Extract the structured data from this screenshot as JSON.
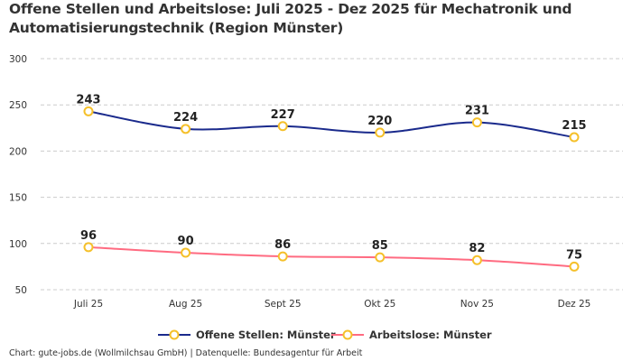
{
  "chart_data": {
    "type": "line",
    "title": "Offene Stellen und Arbeitslose: Juli 2025 - Dez 2025 für Mechatronik und Automatisierungstechnik (Region Münster)",
    "categories": [
      "Juli 25",
      "Aug 25",
      "Sept 25",
      "Okt 25",
      "Nov 25",
      "Dez 25"
    ],
    "series": [
      {
        "name": "Offene Stellen: Münster",
        "values": [
          243,
          224,
          227,
          220,
          231,
          215
        ],
        "color": "#1a2a8c"
      },
      {
        "name": "Arbeitslose: Münster",
        "values": [
          96,
          90,
          86,
          85,
          82,
          75
        ],
        "color": "#ff6b81"
      }
    ],
    "marker_color": "#f5c02a",
    "yticks": [
      50,
      100,
      150,
      200,
      250,
      300
    ],
    "ylim": [
      50,
      300
    ],
    "grid": true,
    "legend_position": "bottom",
    "xlabel": "",
    "ylabel": ""
  },
  "credit": "Chart: gute-jobs.de (Wollmilchsau GmbH) | Datenquelle: Bundesagentur für Arbeit"
}
